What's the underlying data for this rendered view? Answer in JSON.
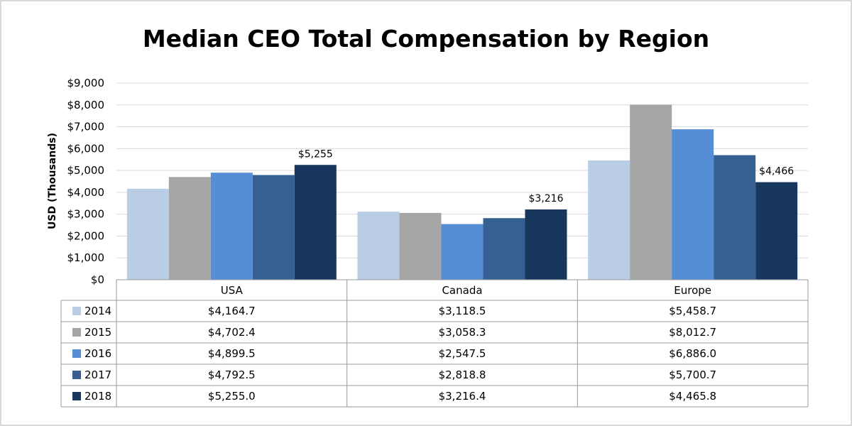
{
  "chart_data": {
    "type": "bar",
    "title": "Median CEO Total Compensation by Region",
    "ylabel": "USD (Thousands)",
    "xlabel": "",
    "ylim": [
      0,
      9000
    ],
    "yticks": [
      "$0",
      "$1,000",
      "$2,000",
      "$3,000",
      "$4,000",
      "$5,000",
      "$6,000",
      "$7,000",
      "$8,000",
      "$9,000"
    ],
    "categories": [
      "USA",
      "Canada",
      "Europe"
    ],
    "legend": "data table",
    "series": [
      {
        "name": "2014",
        "color": "#b9cde5",
        "values": [
          4164.7,
          3118.5,
          5458.7
        ],
        "labels": [
          "$4,164.7",
          "$3,118.5",
          "$5,458.7"
        ]
      },
      {
        "name": "2015",
        "color": "#a6a6a6",
        "values": [
          4702.4,
          3058.3,
          8012.7
        ],
        "labels": [
          "$4,702.4",
          "$3,058.3",
          "$8,012.7"
        ]
      },
      {
        "name": "2016",
        "color": "#558ed5",
        "values": [
          4899.5,
          2547.5,
          6886.0
        ],
        "labels": [
          "$4,899.5",
          "$2,547.5",
          "$6,886.0"
        ]
      },
      {
        "name": "2017",
        "color": "#376092",
        "values": [
          4792.5,
          2818.8,
          5700.7
        ],
        "labels": [
          "$4,792.5",
          "$2,818.8",
          "$5,700.7"
        ]
      },
      {
        "name": "2018",
        "color": "#17375e",
        "values": [
          5255.0,
          3216.4,
          4465.8
        ],
        "labels": [
          "$5,255.0",
          "$3,216.4",
          "$4,465.8"
        ]
      }
    ],
    "annotations": [
      {
        "series": "2018",
        "category": "USA",
        "text": "$5,255"
      },
      {
        "series": "2018",
        "category": "Canada",
        "text": "$3,216"
      },
      {
        "series": "2018",
        "category": "Europe",
        "text": "$4,466"
      }
    ]
  }
}
